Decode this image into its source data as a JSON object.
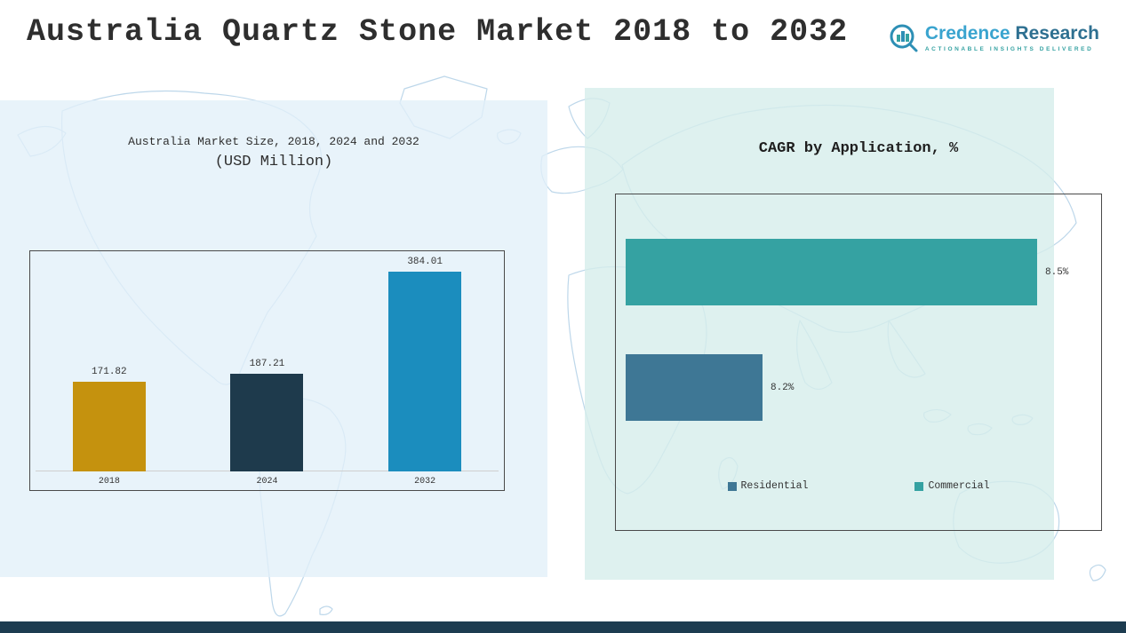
{
  "header": {
    "title": "Australia Quartz Stone Market 2018 to 2032",
    "logo": {
      "name_part1": "Credence",
      "name_part2": " Research",
      "tagline": "Actionable Insights Delivered"
    }
  },
  "left_chart": {
    "title_line1": "Australia Market Size, 2018, 2024 and 2032",
    "title_line2": "(USD Million)"
  },
  "right_chart": {
    "title": "CAGR by Application, %"
  },
  "colors": {
    "left_panel_bg": "#e2eff8",
    "right_panel_bg": "#d6eeeb",
    "footer_bar": "#1d3c50",
    "map_line": "#bdd7ea"
  },
  "chart_data": [
    {
      "type": "bar",
      "orientation": "vertical",
      "title": "Australia Market Size, 2018, 2024 and 2032 (USD Million)",
      "categories": [
        "2018",
        "2024",
        "2032"
      ],
      "values": [
        171.82,
        187.21,
        384.01
      ],
      "value_labels": [
        "171.82",
        "187.21",
        "384.01"
      ],
      "colors": [
        "#c5920e",
        "#1e3a4c",
        "#1b8dbe"
      ],
      "ylim": [
        0,
        420
      ],
      "grid": false,
      "legend": null
    },
    {
      "type": "bar",
      "orientation": "horizontal",
      "title": "CAGR by Application, %",
      "categories": [
        "Commercial",
        "Residential"
      ],
      "values": [
        8.5,
        8.2
      ],
      "value_labels": [
        "8.5%",
        "8.2%"
      ],
      "colors": [
        "#35a2a2",
        "#3e7795"
      ],
      "xlim": [
        8.05,
        8.55
      ],
      "grid": false,
      "legend": [
        {
          "label": "Residential",
          "color": "#3e7795"
        },
        {
          "label": "Commercial",
          "color": "#35a2a2"
        }
      ]
    }
  ]
}
